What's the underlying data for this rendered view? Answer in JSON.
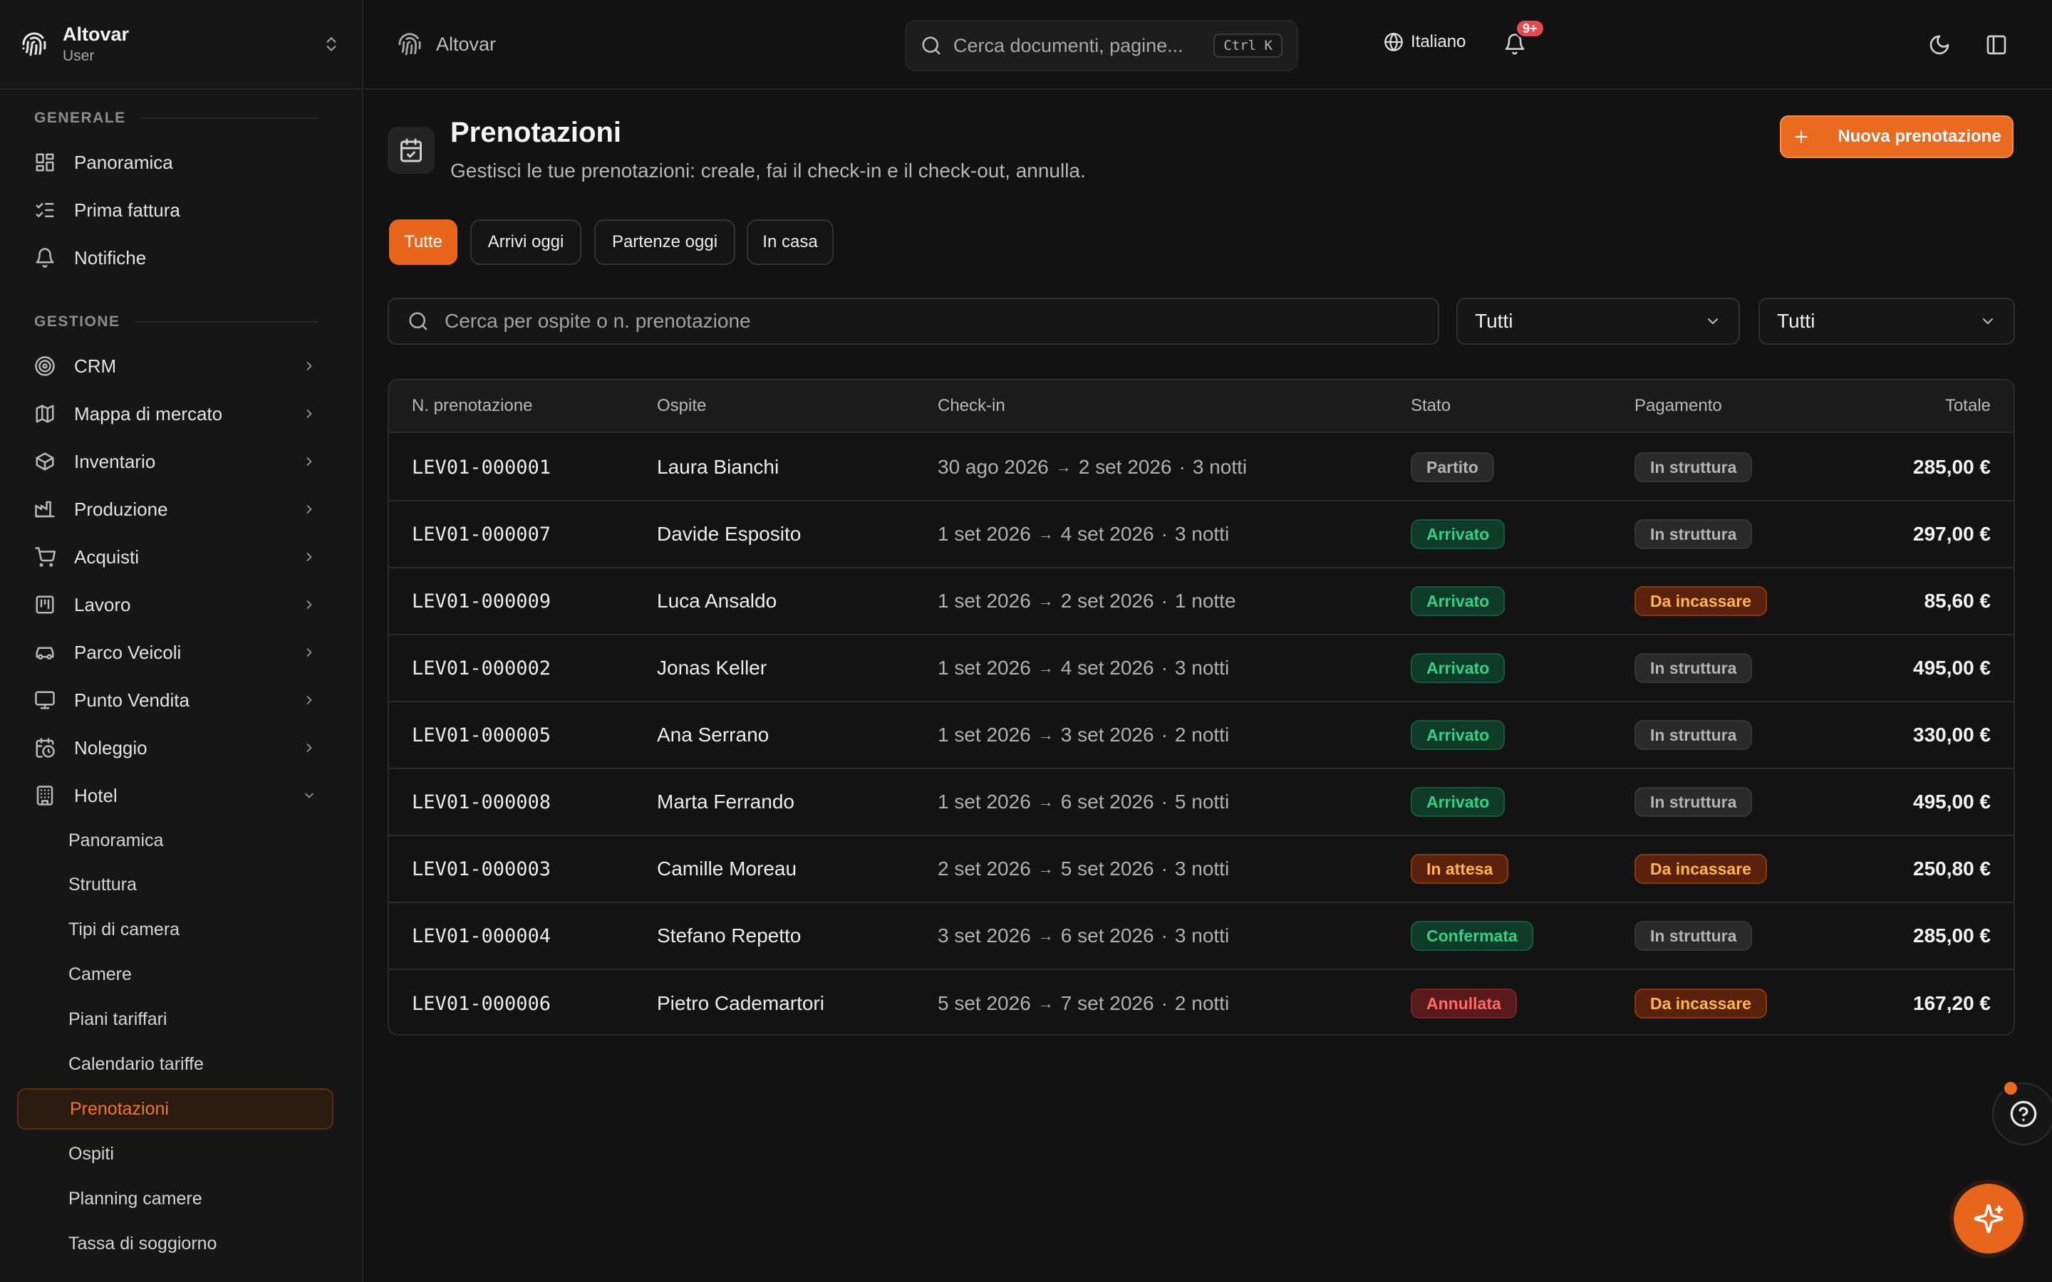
{
  "sidebar": {
    "brand_name": "Altovar",
    "brand_role": "User",
    "section_general": "GENERALE",
    "general_items": [
      {
        "label": "Panoramica",
        "icon": "dashboard-icon"
      },
      {
        "label": "Prima fattura",
        "icon": "checklist-icon"
      },
      {
        "label": "Notifiche",
        "icon": "bell-icon"
      }
    ],
    "section_management": "GESTIONE",
    "management_items": [
      {
        "label": "CRM",
        "icon": "target-icon"
      },
      {
        "label": "Mappa di mercato",
        "icon": "map-icon"
      },
      {
        "label": "Inventario",
        "icon": "box-icon"
      },
      {
        "label": "Produzione",
        "icon": "factory-icon"
      },
      {
        "label": "Acquisti",
        "icon": "cart-icon"
      },
      {
        "label": "Lavoro",
        "icon": "kanban-icon"
      },
      {
        "label": "Parco Veicoli",
        "icon": "car-icon"
      },
      {
        "label": "Punto Vendita",
        "icon": "monitor-icon"
      },
      {
        "label": "Noleggio",
        "icon": "calendar-clock-icon"
      },
      {
        "label": "Hotel",
        "icon": "building-icon"
      }
    ],
    "hotel_sub_items": [
      "Panoramica",
      "Struttura",
      "Tipi di camera",
      "Camere",
      "Piani tariffari",
      "Calendario tariffe",
      "Prenotazioni",
      "Ospiti",
      "Planning camere",
      "Tassa di soggiorno"
    ],
    "active_sub_item": "Prenotazioni"
  },
  "header": {
    "app_name": "Altovar",
    "search_placeholder": "Cerca documenti, pagine...",
    "search_shortcut": "Ctrl K",
    "language": "Italiano",
    "notification_count": "9+"
  },
  "page": {
    "title": "Prenotazioni",
    "subtitle": "Gestisci le tue prenotazioni: creale, fai il check-in e il check-out, annulla.",
    "new_button": "Nuova prenotazione",
    "tabs": [
      "Tutte",
      "Arrivi oggi",
      "Partenze oggi",
      "In casa"
    ],
    "active_tab": "Tutte",
    "filter_search_placeholder": "Cerca per ospite o n. prenotazione",
    "filter_status_value": "Tutti",
    "filter_payment_value": "Tutti"
  },
  "table": {
    "columns": {
      "id": "N. prenotazione",
      "guest": "Ospite",
      "checkin": "Check-in",
      "state": "Stato",
      "payment": "Pagamento",
      "total": "Totale"
    },
    "rows": [
      {
        "id": "LEV01-000001",
        "guest": "Laura Bianchi",
        "from": "30 ago 2026",
        "to": "2 set 2026",
        "nights": "3 notti",
        "state": "Partito",
        "state_color": "gray",
        "payment": "In struttura",
        "payment_color": "gray",
        "total": "285,00 €"
      },
      {
        "id": "LEV01-000007",
        "guest": "Davide Esposito",
        "from": "1 set 2026",
        "to": "4 set 2026",
        "nights": "3 notti",
        "state": "Arrivato",
        "state_color": "green",
        "payment": "In struttura",
        "payment_color": "gray",
        "total": "297,00 €"
      },
      {
        "id": "LEV01-000009",
        "guest": "Luca Ansaldo",
        "from": "1 set 2026",
        "to": "2 set 2026",
        "nights": "1 notte",
        "state": "Arrivato",
        "state_color": "green",
        "payment": "Da incassare",
        "payment_color": "orange",
        "total": "85,60 €"
      },
      {
        "id": "LEV01-000002",
        "guest": "Jonas Keller",
        "from": "1 set 2026",
        "to": "4 set 2026",
        "nights": "3 notti",
        "state": "Arrivato",
        "state_color": "green",
        "payment": "In struttura",
        "payment_color": "gray",
        "total": "495,00 €"
      },
      {
        "id": "LEV01-000005",
        "guest": "Ana Serrano",
        "from": "1 set 2026",
        "to": "3 set 2026",
        "nights": "2 notti",
        "state": "Arrivato",
        "state_color": "green",
        "payment": "In struttura",
        "payment_color": "gray",
        "total": "330,00 €"
      },
      {
        "id": "LEV01-000008",
        "guest": "Marta Ferrando",
        "from": "1 set 2026",
        "to": "6 set 2026",
        "nights": "5 notti",
        "state": "Arrivato",
        "state_color": "green",
        "payment": "In struttura",
        "payment_color": "gray",
        "total": "495,00 €"
      },
      {
        "id": "LEV01-000003",
        "guest": "Camille Moreau",
        "from": "2 set 2026",
        "to": "5 set 2026",
        "nights": "3 notti",
        "state": "In attesa",
        "state_color": "orange",
        "payment": "Da incassare",
        "payment_color": "orange",
        "total": "250,80 €"
      },
      {
        "id": "LEV01-000004",
        "guest": "Stefano Repetto",
        "from": "3 set 2026",
        "to": "6 set 2026",
        "nights": "3 notti",
        "state": "Confermata",
        "state_color": "green",
        "payment": "In struttura",
        "payment_color": "gray",
        "total": "285,00 €"
      },
      {
        "id": "LEV01-000006",
        "guest": "Pietro Cademartori",
        "from": "5 set 2026",
        "to": "7 set 2026",
        "nights": "2 notti",
        "state": "Annullata",
        "state_color": "red",
        "payment": "Da incassare",
        "payment_color": "orange",
        "total": "167,20 €"
      }
    ]
  },
  "colors": {
    "accent": "#ea6a1f",
    "background": "#121212",
    "status_green": "#33d184",
    "status_orange": "#ffb54a",
    "status_red": "#ff6b6b"
  }
}
